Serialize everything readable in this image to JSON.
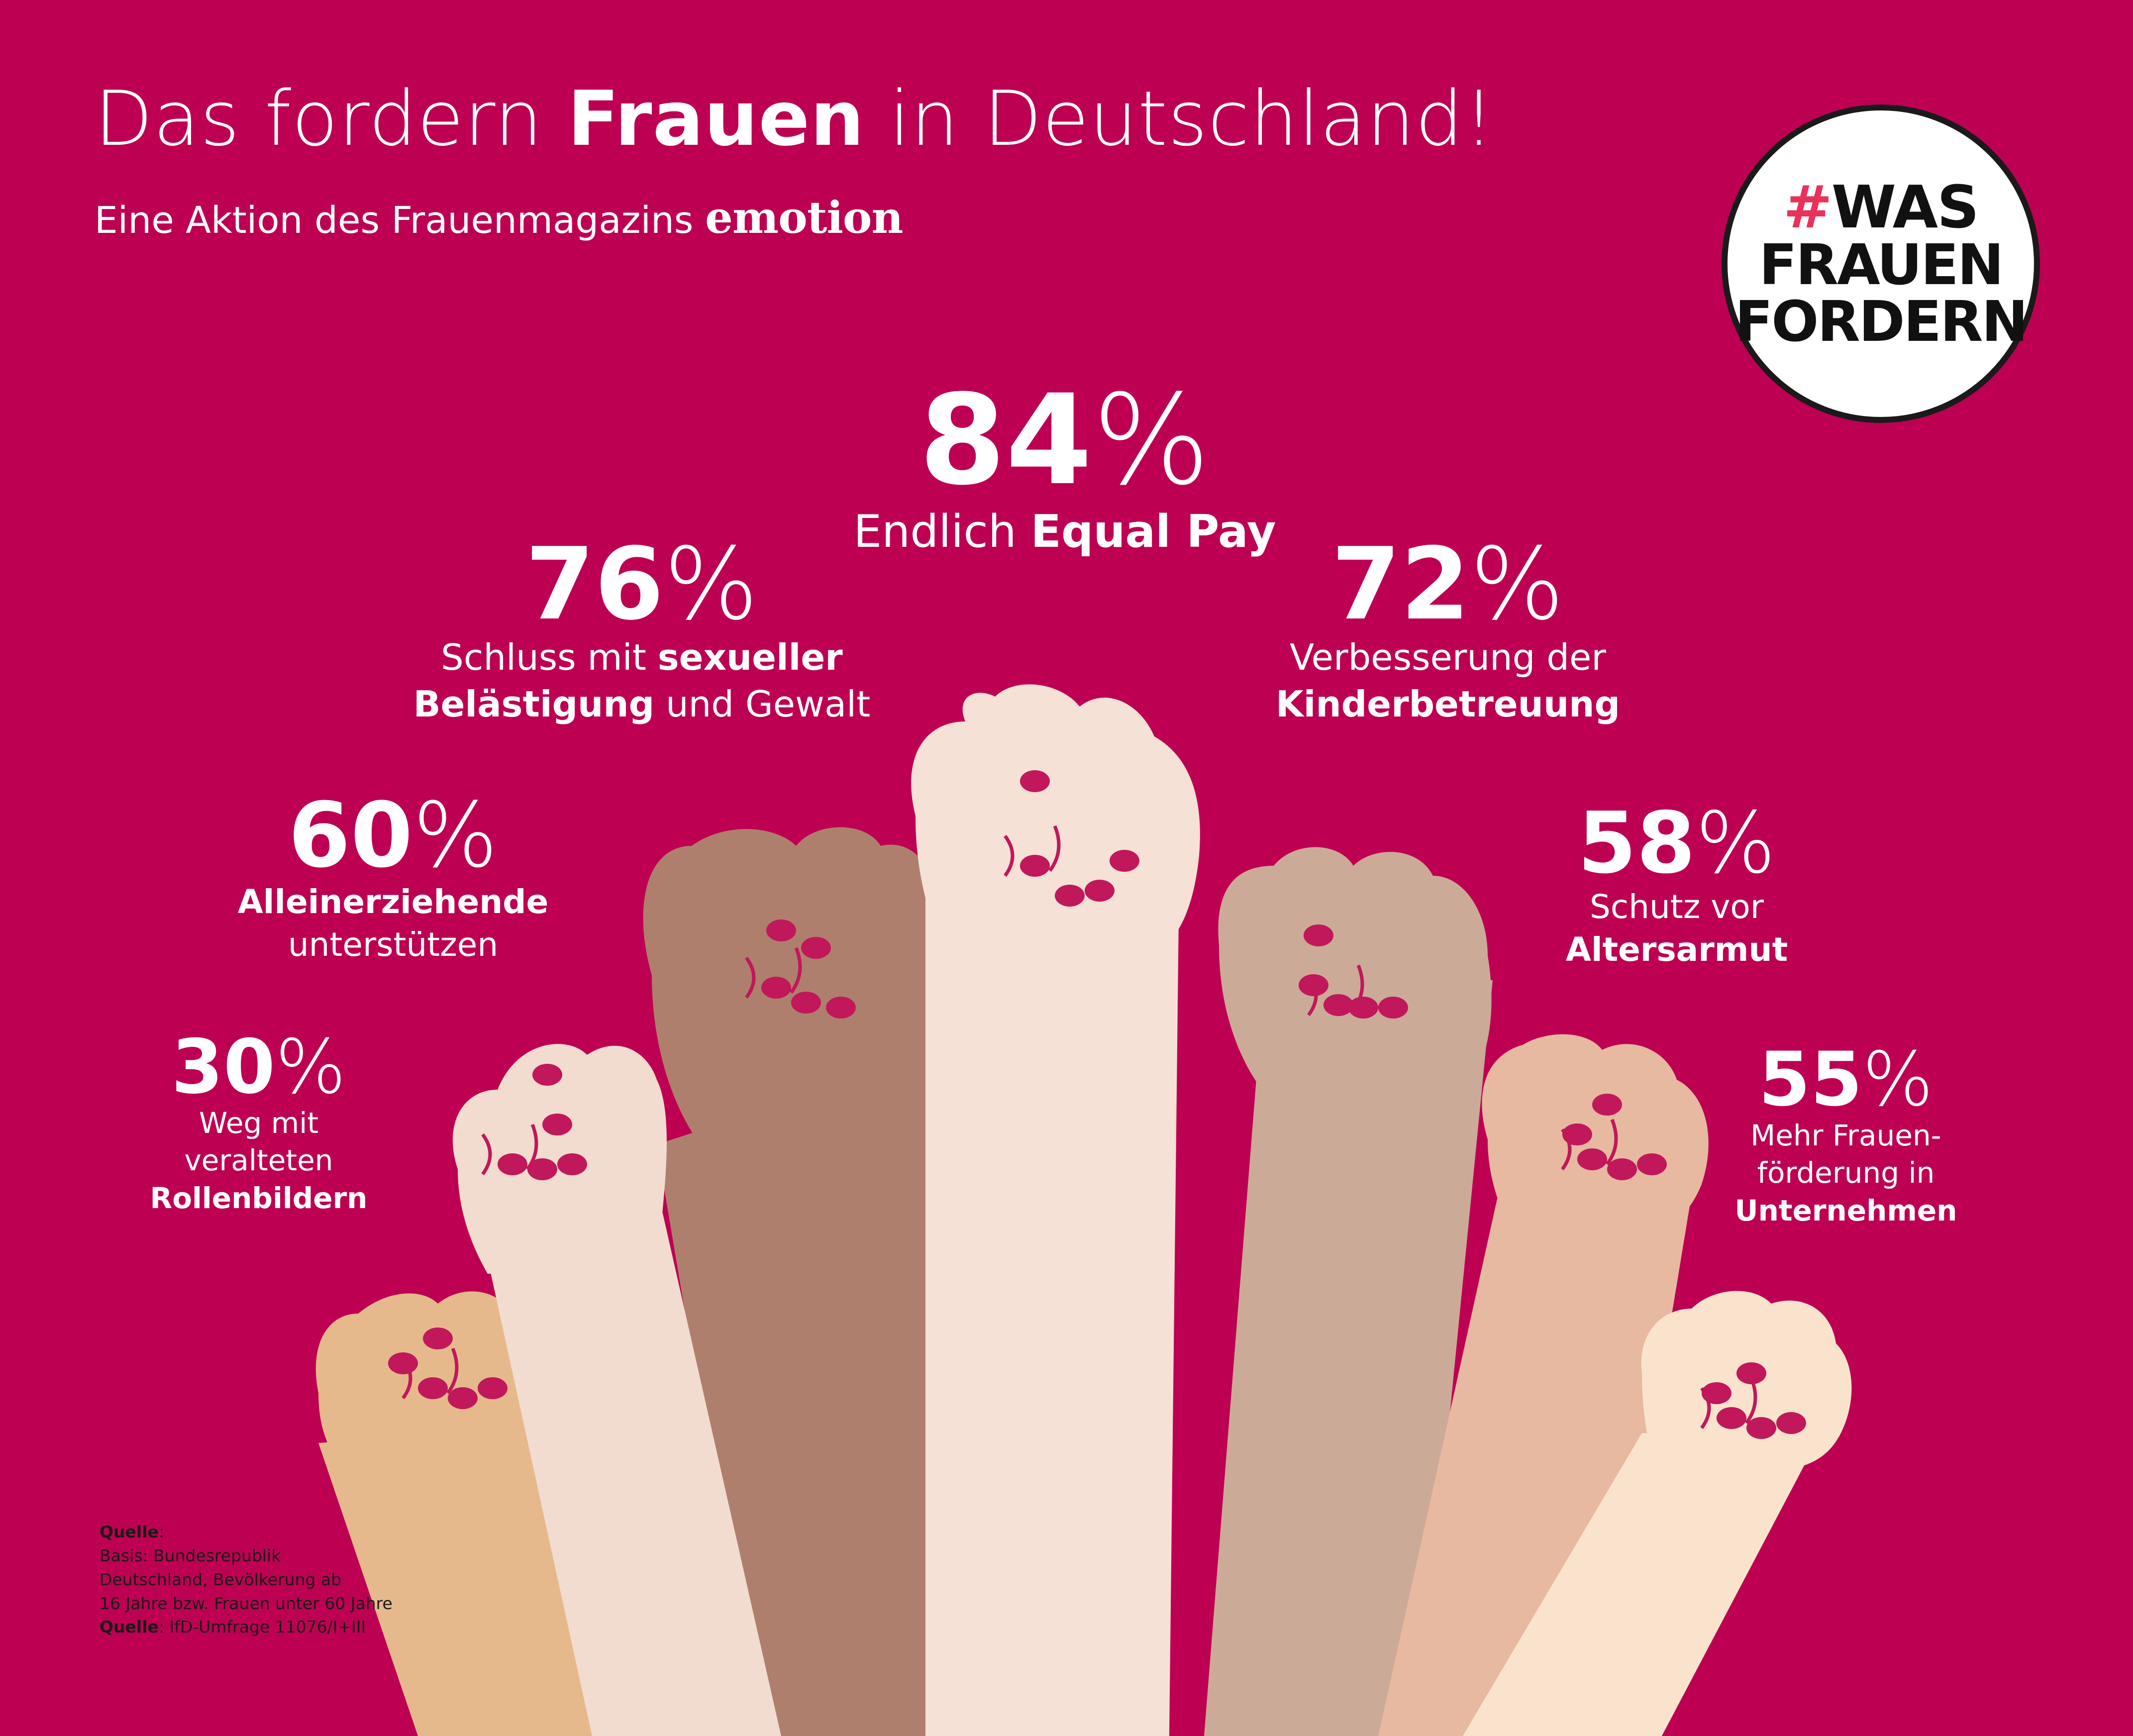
{
  "header": {
    "title_pre": "Das fordern",
    "title_bold": "Frauen",
    "title_post": "in Deutschland!",
    "subtitle": "Eine Aktion des Frauenmagazins",
    "brand": "emotion"
  },
  "logo": {
    "hash": "#",
    "line1": "WAS",
    "line2": "FRAUEN",
    "line3": "FORDERN"
  },
  "chart_data": {
    "type": "bar",
    "title": "Das fordern Frauen in Deutschland!",
    "categories": [
      "Weg mit veralteten Rollenbildern",
      "Alleinerziehende unterstützen",
      "Schluss mit sexueller Belästigung und Gewalt",
      "Endlich Equal Pay",
      "Verbesserung der Kinderbetreuung",
      "Schutz vor Altersarmut",
      "Mehr Frauenförderung in Unternehmen"
    ],
    "values": [
      30,
      60,
      76,
      84,
      72,
      58,
      55
    ],
    "unit": "%"
  },
  "stats": [
    {
      "pct": "30",
      "sym": "%",
      "lines": [
        [
          [
            "Weg mit",
            false
          ]
        ],
        [
          [
            "veralteten",
            false
          ]
        ],
        [
          [
            "Rollenbildern",
            true
          ]
        ]
      ]
    },
    {
      "pct": "60",
      "sym": "%",
      "lines": [
        [
          [
            "Alleinerziehende",
            true
          ]
        ],
        [
          [
            "unterstützen",
            false
          ]
        ]
      ]
    },
    {
      "pct": "76",
      "sym": "%",
      "lines": [
        [
          [
            "Schluss mit ",
            false
          ],
          [
            "sexueller",
            true
          ]
        ],
        [
          [
            "Belästigung",
            true
          ],
          [
            " und Gewalt",
            false
          ]
        ]
      ]
    },
    {
      "pct": "84",
      "sym": "%",
      "lines": [
        [
          [
            "Endlich ",
            false
          ],
          [
            "Equal Pay",
            true
          ]
        ]
      ]
    },
    {
      "pct": "72",
      "sym": "%",
      "lines": [
        [
          [
            "Verbesserung der",
            false
          ]
        ],
        [
          [
            "Kinderbetreuung",
            true
          ]
        ]
      ]
    },
    {
      "pct": "58",
      "sym": "%",
      "lines": [
        [
          [
            "Schutz vor",
            false
          ]
        ],
        [
          [
            "Altersarmut",
            true
          ]
        ]
      ]
    },
    {
      "pct": "55",
      "sym": "%",
      "lines": [
        [
          [
            "Mehr Frauen-",
            false
          ]
        ],
        [
          [
            "förderung in",
            false
          ]
        ],
        [
          [
            "Unternehmen",
            true
          ]
        ]
      ]
    }
  ],
  "colors": {
    "background": "#bd0052",
    "nail": "#c0185a",
    "skin_tones": [
      "#e6b98c",
      "#f2dccf",
      "#af7f6d",
      "#f5e1d5",
      "#ccaa98",
      "#e7b9a0",
      "#f9e3cd"
    ]
  },
  "source": {
    "label1": "Quelle",
    "line1": "Basis: Bundesrepublik",
    "line2": "Deutschland, Bevölkerung ab",
    "line3": "16 Jahre bzw. Frauen unter 60 Jahre",
    "label2": "Quelle",
    "line4": "IfD-Umfrage 11076/I+III"
  }
}
